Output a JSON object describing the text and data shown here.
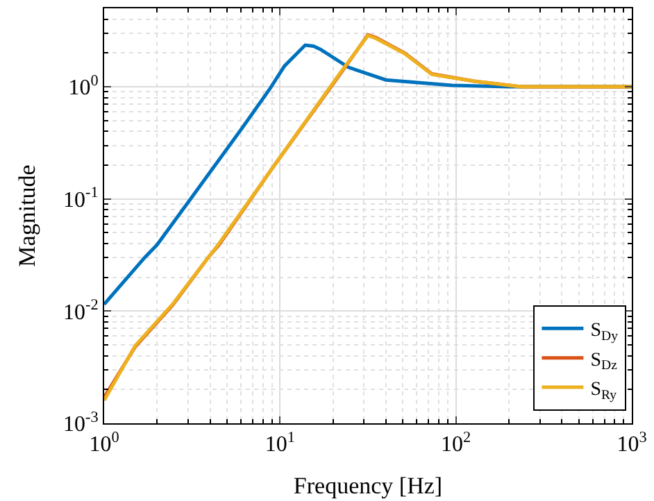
{
  "chart_data": {
    "type": "line",
    "xlabel": "Frequency [Hz]",
    "ylabel": "Magnitude",
    "log": "xy",
    "grid": true,
    "legend": "bottom right",
    "xlim": [
      1,
      1000
    ],
    "ylim": [
      0.001,
      5
    ],
    "xticks": [
      {
        "value": 1,
        "label": "10$^{0}$"
      },
      {
        "value": 10,
        "label": "10$^{1}$"
      },
      {
        "value": 100,
        "label": "10$^{2}$"
      },
      {
        "value": 1000,
        "label": "10$^{3}$"
      }
    ],
    "yticks": [
      {
        "value": 0.001,
        "label": "10$^{-3}$"
      },
      {
        "value": 0.01,
        "label": "10$^{-2}$"
      },
      {
        "value": 0.1,
        "label": "10$^{-1}$"
      },
      {
        "value": 1,
        "label": "10$^{0}$"
      }
    ],
    "series": [
      {
        "name": "S$_{Dy}$",
        "color": "#0072bd",
        "x": [
          1,
          1.7,
          2,
          3.1,
          6.1,
          8.8,
          10.6,
          13.9,
          15.5,
          17,
          24.5,
          40,
          95,
          200,
          1000
        ],
        "values": [
          0.0115,
          0.03,
          0.039,
          0.1,
          0.43,
          0.97,
          1.53,
          2.35,
          2.3,
          2.15,
          1.49,
          1.15,
          1.03,
          1.0,
          1.0
        ]
      },
      {
        "name": "S$_{Dz}$",
        "color": "#d95319",
        "x": [
          1,
          1.5,
          2.45,
          3.9,
          4.5,
          9.3,
          22,
          31.6,
          35,
          51,
          73,
          127,
          235,
          1000
        ],
        "values": [
          0.0017,
          0.0048,
          0.0113,
          0.03,
          0.039,
          0.2,
          1.3,
          2.9,
          2.75,
          2.0,
          1.3,
          1.12,
          1.0,
          1.0
        ]
      },
      {
        "name": "S$_{Ry}$",
        "color": "#edb120",
        "x": [
          1,
          1.5,
          2.45,
          3.9,
          4.5,
          9.3,
          22,
          31.6,
          35,
          51,
          73,
          127,
          235,
          1000
        ],
        "values": [
          0.0016,
          0.0049,
          0.0115,
          0.03,
          0.04,
          0.2,
          1.33,
          2.86,
          2.7,
          1.98,
          1.29,
          1.12,
          1.0,
          1.0
        ]
      }
    ]
  }
}
